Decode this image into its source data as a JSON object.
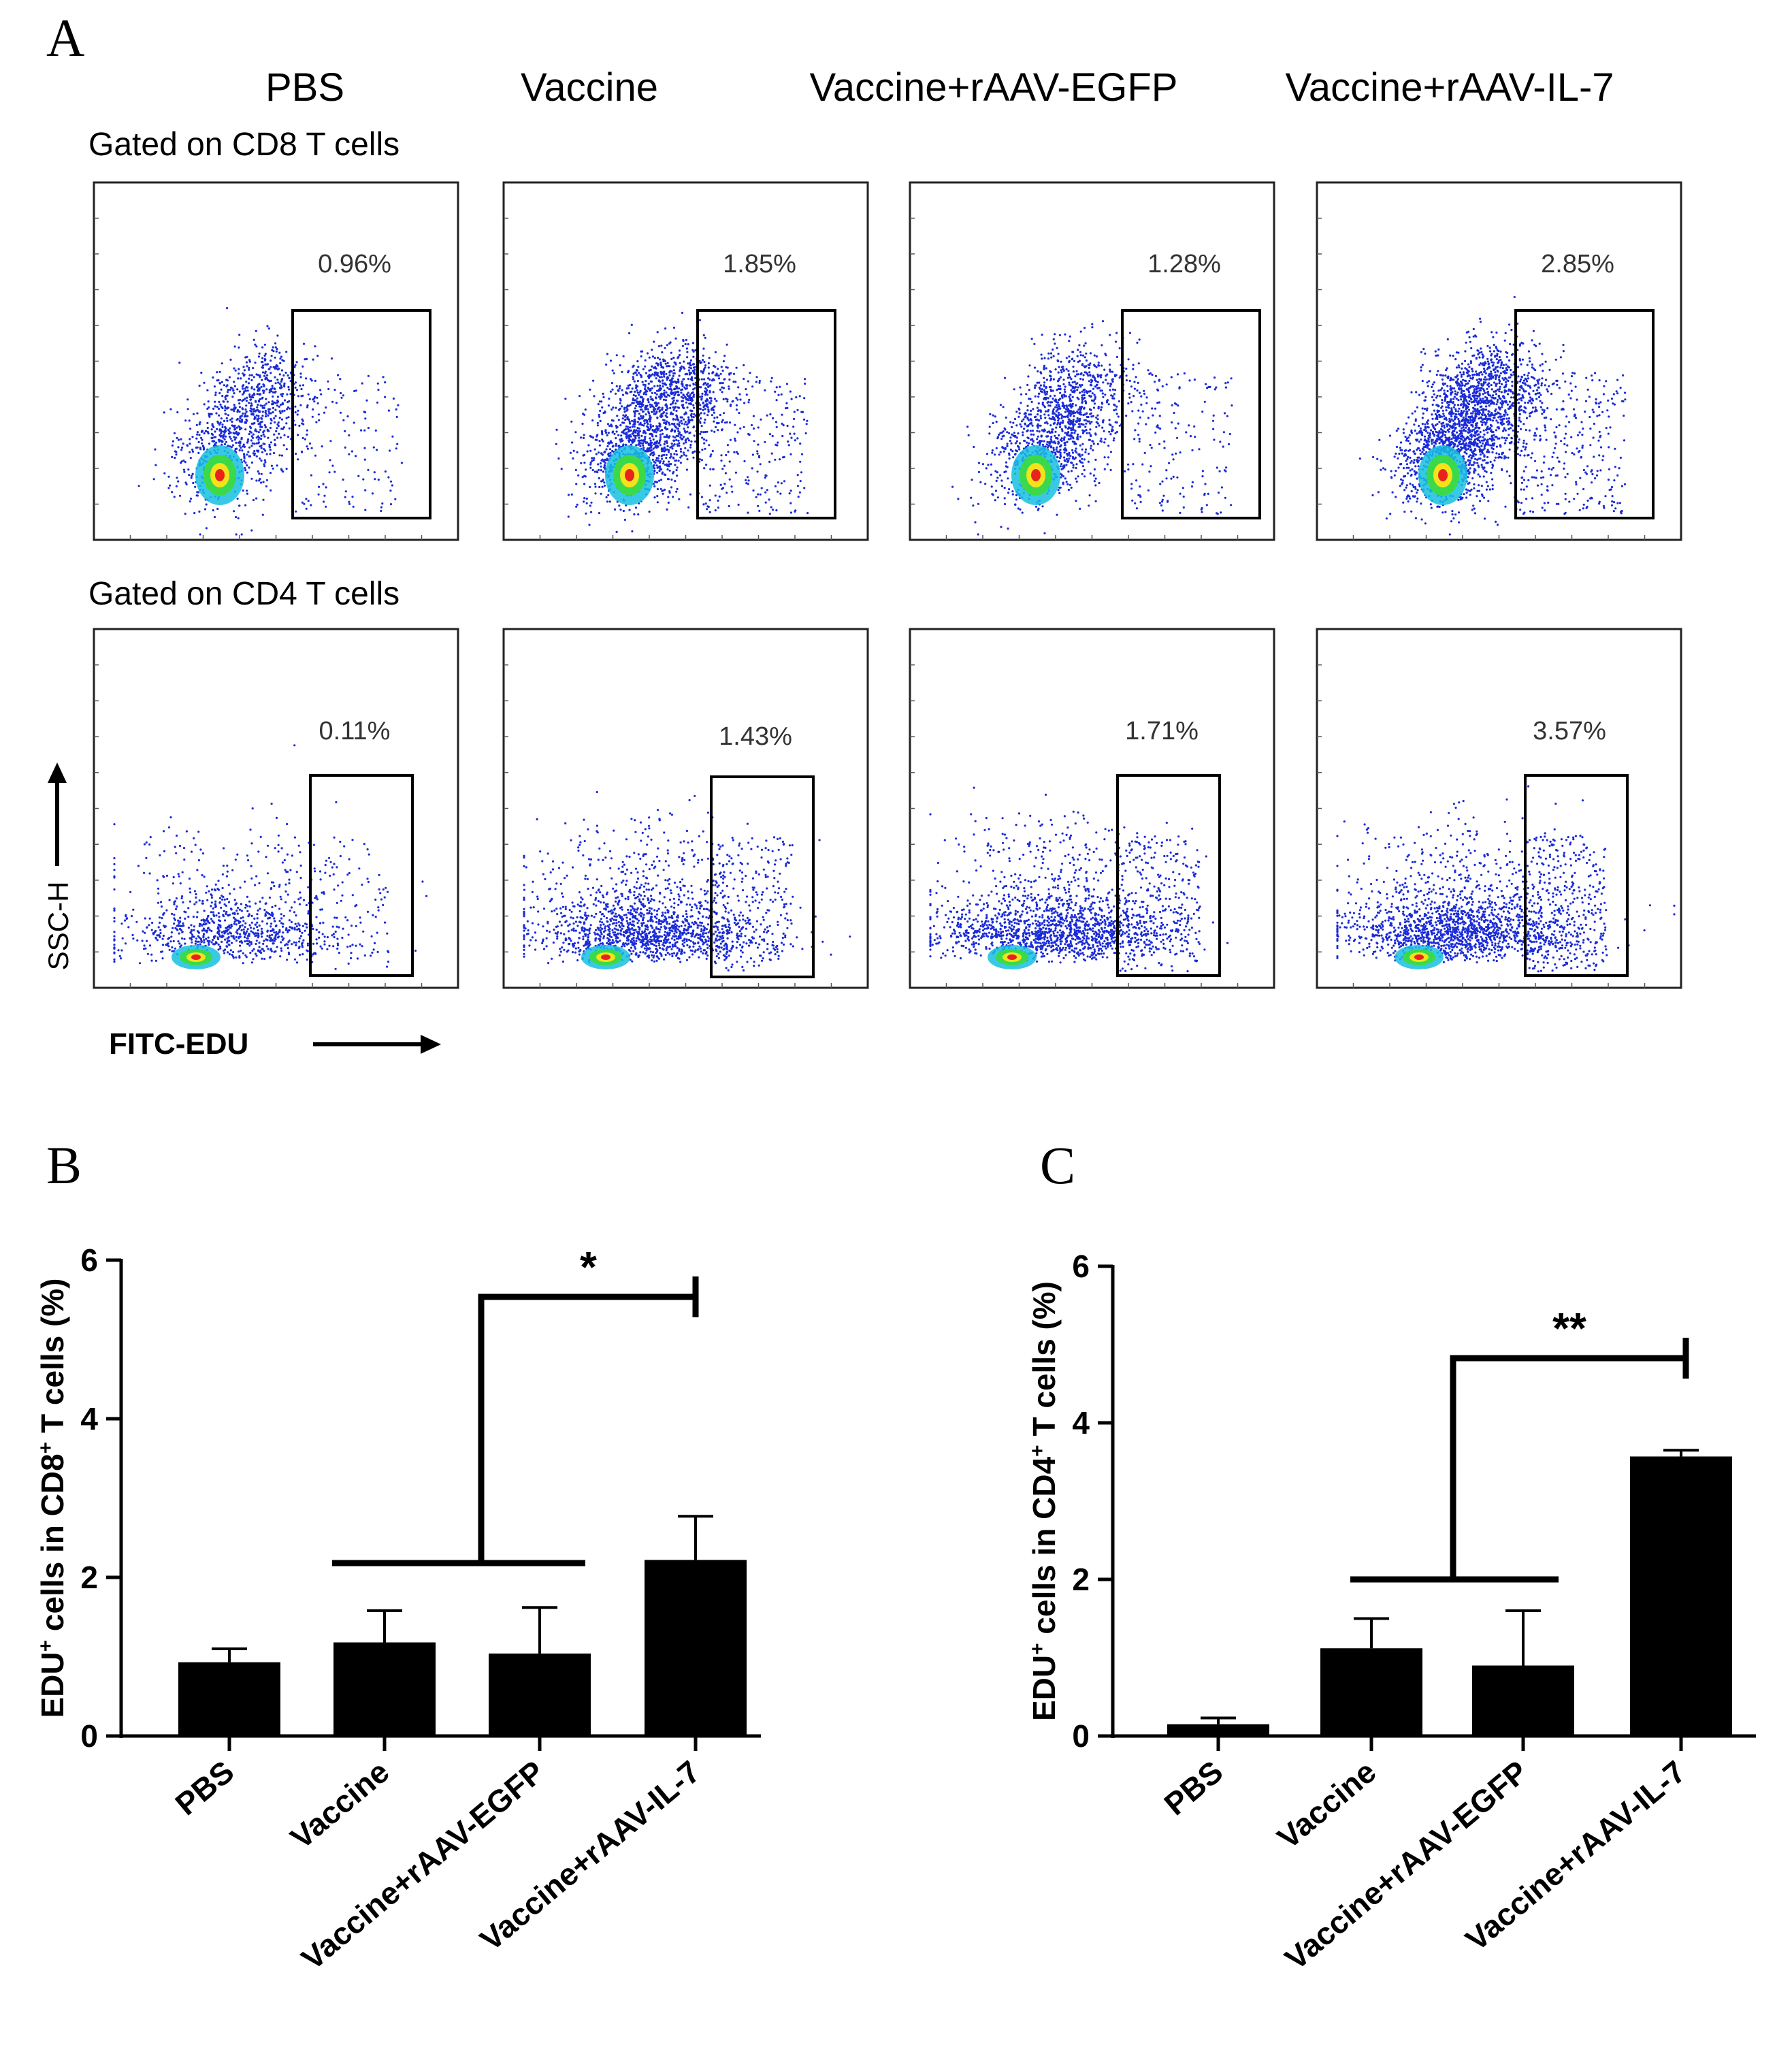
{
  "panel_labels": {
    "a": "A",
    "b": "B",
    "c": "C"
  },
  "flow": {
    "groups": [
      "PBS",
      "Vaccine",
      "Vaccine+rAAV-EGFP",
      "Vaccine+rAAV-IL-7"
    ],
    "row_labels": [
      "Gated on CD8 T cells",
      "Gated on CD4 T cells"
    ],
    "percentages": [
      [
        "0.96%",
        "1.85%",
        "1.28%",
        "2.85%"
      ],
      [
        "0.11%",
        "1.43%",
        "1.71%",
        "3.57%"
      ]
    ],
    "y_axis_label": "SSC-H",
    "x_axis_label": "FITC-EDU"
  },
  "chart_data": [
    {
      "type": "bar",
      "panel": "B",
      "categories": [
        "PBS",
        "Vaccine",
        "Vaccine+rAAV-EGFP",
        "Vaccine+rAAV-IL-7"
      ],
      "values": [
        0.93,
        1.18,
        1.04,
        2.22
      ],
      "errors": [
        0.17,
        0.4,
        0.58,
        0.55
      ],
      "ylabel_parts": [
        "EDU",
        "+",
        " cells in CD8",
        "+",
        " T cells (%)"
      ],
      "ylim": [
        0,
        6
      ],
      "yticks": [
        "0",
        "2",
        "4",
        "6"
      ],
      "significance": "*",
      "color": "#000000"
    },
    {
      "type": "bar",
      "panel": "C",
      "categories": [
        "PBS",
        "Vaccine",
        "Vaccine+rAAV-EGFP",
        "Vaccine+rAAV-IL-7"
      ],
      "values": [
        0.15,
        1.12,
        0.9,
        3.57
      ],
      "errors": [
        0.08,
        0.38,
        0.7,
        0.08
      ],
      "ylabel_parts": [
        "EDU",
        "+",
        " cells in CD4",
        "+",
        " T cells (%)"
      ],
      "ylim": [
        0,
        6
      ],
      "yticks": [
        "0",
        "2",
        "4",
        "6"
      ],
      "significance": "**",
      "color": "#000000"
    }
  ]
}
